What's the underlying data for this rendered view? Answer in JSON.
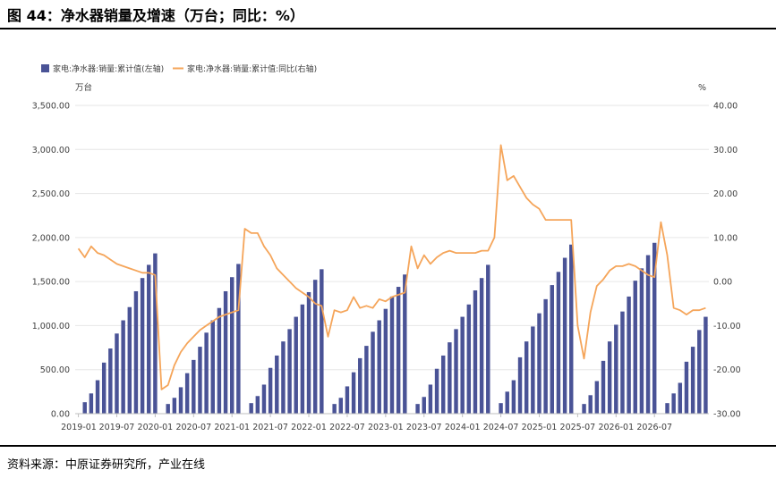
{
  "header": {
    "title": "图 44：净水器销量及增速（万台；同比：%）"
  },
  "footer": {
    "source": "资料来源：中原证券研究所，产业在线"
  },
  "chart_data": {
    "type": "bar+line",
    "left_axis_unit": "万台",
    "right_axis_unit": "%",
    "ylim_left": [
      0,
      3500
    ],
    "ylim_right": [
      -30,
      40
    ],
    "left_ticks": [
      "0.00",
      "500.00",
      "1,000.00",
      "1,500.00",
      "2,000.00",
      "2,500.00",
      "3,000.00",
      "3,500.00"
    ],
    "right_ticks": [
      "-30.00",
      "-20.00",
      "-10.00",
      "0.00",
      "10.00",
      "20.00",
      "30.00",
      "40.00"
    ],
    "x_tick_labels": [
      "2019-01",
      "2019-07",
      "2020-01",
      "2020-07",
      "2021-01",
      "2021-07",
      "2022-01",
      "2022-07",
      "2023-01",
      "2023-07",
      "2024-01",
      "2024-07",
      "2025-01",
      "2025-07",
      "2026-01",
      "2026-07"
    ],
    "colors": {
      "bar": "#4a5396",
      "line": "#f5a55a"
    },
    "series": [
      {
        "name": "家电:净水器:销量:累计值(左轴)",
        "type": "bar",
        "axis": "left",
        "values": [
          null,
          130,
          230,
          380,
          580,
          740,
          910,
          1060,
          1210,
          1390,
          1540,
          1690,
          1820,
          null,
          110,
          180,
          300,
          460,
          610,
          760,
          920,
          1060,
          1200,
          1390,
          1550,
          1700,
          null,
          120,
          200,
          330,
          520,
          660,
          820,
          960,
          1100,
          1240,
          1380,
          1520,
          1640,
          null,
          110,
          180,
          310,
          470,
          630,
          770,
          930,
          1060,
          1190,
          1330,
          1440,
          1580,
          null,
          110,
          190,
          330,
          510,
          660,
          810,
          960,
          1100,
          1240,
          1400,
          1540,
          1690,
          null,
          120,
          250,
          380,
          640,
          820,
          990,
          1140,
          1300,
          1460,
          1610,
          1770,
          1920,
          null,
          110,
          210,
          370,
          600,
          820,
          1010,
          1160,
          1330,
          1510,
          1650,
          1800,
          1940,
          null,
          120,
          230,
          350,
          590,
          760,
          950,
          1100
        ]
      },
      {
        "name": "家电:净水器:销量:累计值:同比(右轴)",
        "type": "line",
        "axis": "right",
        "values": [
          7.5,
          5.5,
          8.0,
          6.5,
          6.0,
          5.0,
          4.0,
          3.5,
          3.0,
          2.5,
          2.0,
          2.0,
          1.5,
          -24.5,
          -23.5,
          -19.0,
          -16.0,
          -14.0,
          -12.5,
          -11.0,
          -10.0,
          -9.0,
          -8.0,
          -7.5,
          -7.0,
          -6.5,
          12.0,
          11.0,
          11.0,
          8.0,
          6.0,
          3.0,
          1.5,
          0.0,
          -1.5,
          -2.5,
          -3.5,
          -5.0,
          -5.5,
          -12.5,
          -6.5,
          -7.0,
          -6.5,
          -3.5,
          -6.0,
          -5.5,
          -6.0,
          -4.0,
          -4.5,
          -3.5,
          -3.0,
          -2.5,
          8.0,
          3.0,
          6.0,
          4.0,
          5.5,
          6.5,
          7.0,
          6.5,
          6.5,
          6.5,
          6.5,
          7.0,
          7.0,
          10.0,
          31.0,
          23.0,
          24.0,
          21.5,
          19.0,
          17.5,
          16.5,
          14.0,
          14.0,
          14.0,
          14.0,
          14.0,
          -10.0,
          -17.5,
          -7.0,
          -1.0,
          0.5,
          2.5,
          3.5,
          3.5,
          4.0,
          3.5,
          2.5,
          1.5,
          1.0,
          13.5,
          6.0,
          -6.0,
          -6.5,
          -7.5,
          -6.5,
          -6.5,
          -6.0
        ]
      }
    ]
  }
}
